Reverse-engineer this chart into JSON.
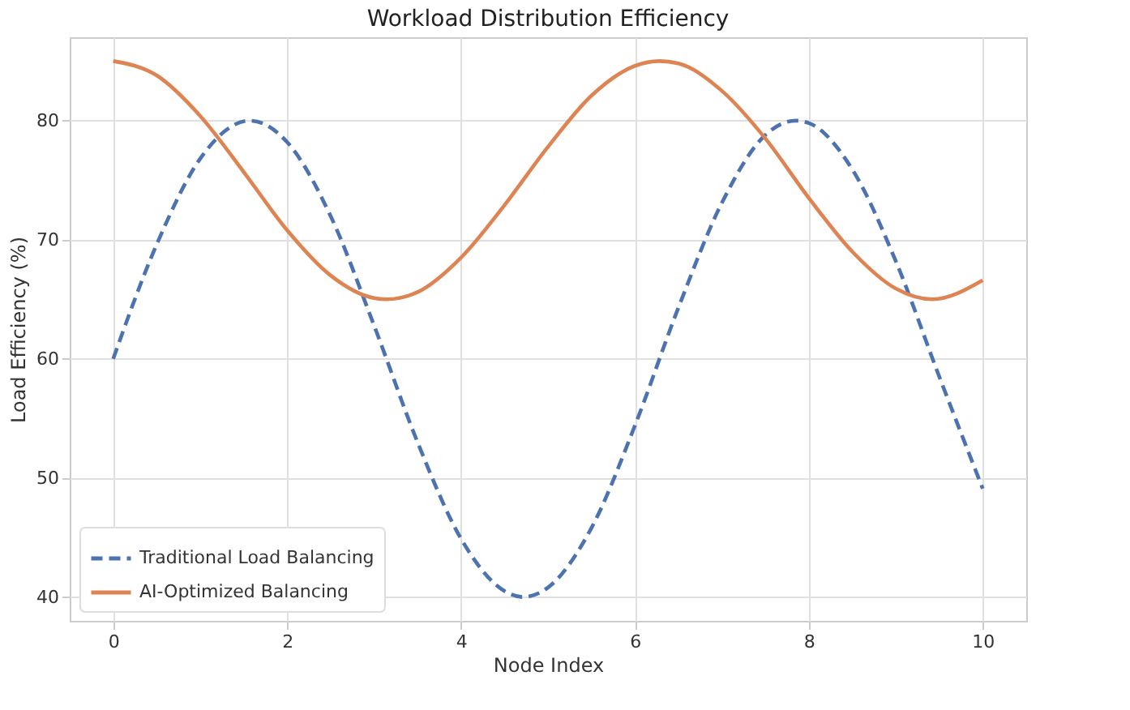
{
  "chart_data": {
    "type": "line",
    "title": "Workload Distribution Efficiency",
    "xlabel": "Node Index",
    "ylabel": "Load Efficiency (%)",
    "xlim": [
      -0.5,
      10.5
    ],
    "xticks": [
      0,
      2,
      4,
      6,
      8,
      10
    ],
    "ylim": [
      38,
      87
    ],
    "yticks": [
      40,
      50,
      60,
      70,
      80
    ],
    "grid": true,
    "legend": "bottom left",
    "series": [
      {
        "name": "Traditional Load Balancing",
        "color": "#4c72b0",
        "line_style": "dashed",
        "x": [
          0,
          0.5,
          1,
          1.57,
          2,
          2.5,
          3,
          3.5,
          4,
          4.5,
          4.71,
          5,
          5.5,
          6,
          6.5,
          7,
          7.5,
          7.85,
          8,
          8.5,
          9,
          9.5,
          10
        ],
        "values": [
          60,
          69.6,
          76.8,
          80,
          78.2,
          72,
          62.8,
          53,
          44.9,
          40.5,
          40,
          40.8,
          45.8,
          54.4,
          64.3,
          73.1,
          78.8,
          80,
          79.8,
          75.9,
          68.2,
          58.5,
          49.1
        ]
      },
      {
        "name": "AI-Optimized Balancing",
        "color": "#dd8452",
        "line_style": "solid",
        "x": [
          0,
          0.5,
          1,
          1.5,
          2,
          2.5,
          3,
          3.14,
          3.5,
          4,
          4.5,
          5,
          5.5,
          6,
          6.28,
          6.5,
          7,
          7.5,
          8,
          8.5,
          9,
          9.42,
          10
        ],
        "values": [
          85,
          83.8,
          80.4,
          75.7,
          70.8,
          67,
          65.1,
          65,
          65.6,
          68.5,
          72.9,
          77.8,
          82.1,
          84.6,
          85,
          84.8,
          82.5,
          78.5,
          73.5,
          69,
          65.9,
          65,
          66.6
        ]
      }
    ]
  }
}
